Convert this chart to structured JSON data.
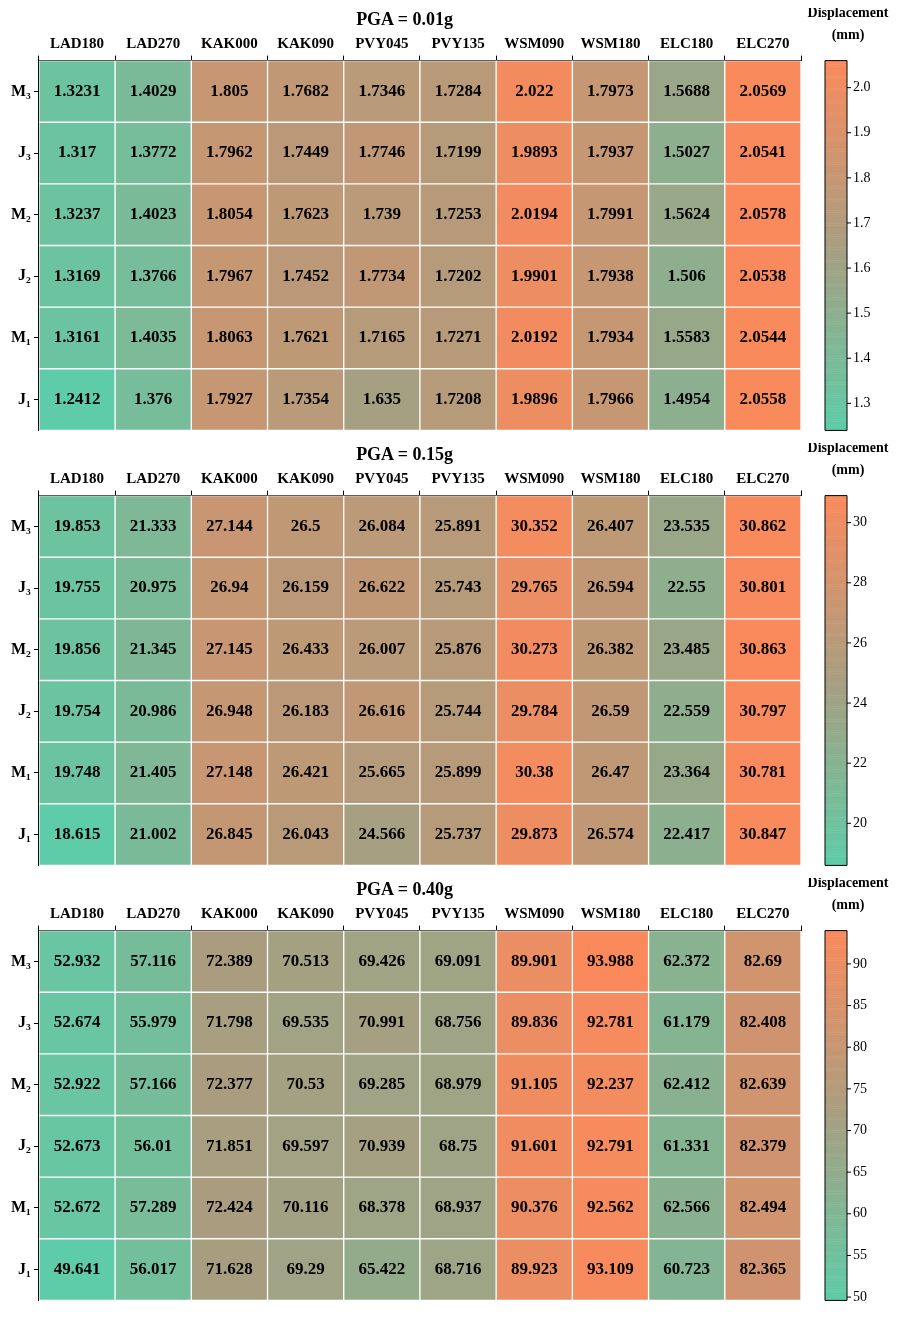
{
  "chart_data": [
    {
      "type": "heatmap",
      "title": "PGA = 0.01g",
      "clabel": "Displacement (mm)",
      "data_labels": true,
      "categories": [
        "LAD180",
        "LAD270",
        "KAK000",
        "KAK090",
        "PVY045",
        "PVY135",
        "WSM090",
        "WSM180",
        "ELC180",
        "ELC270"
      ],
      "y_categories": [
        "M₃",
        "J₃",
        "M₂",
        "J₂",
        "M₁",
        "J₁"
      ],
      "cells": [
        [
          1.3231,
          1.4029,
          1.805,
          1.7682,
          1.7346,
          1.7284,
          2.022,
          1.7973,
          1.5688,
          2.0569
        ],
        [
          1.317,
          1.3772,
          1.7962,
          1.7449,
          1.7746,
          1.7199,
          1.9893,
          1.7937,
          1.5027,
          2.0541
        ],
        [
          1.3237,
          1.4023,
          1.8054,
          1.7623,
          1.739,
          1.7253,
          2.0194,
          1.7991,
          1.5624,
          2.0578
        ],
        [
          1.3169,
          1.3766,
          1.7967,
          1.7452,
          1.7734,
          1.7202,
          1.9901,
          1.7938,
          1.506,
          2.0538
        ],
        [
          1.3161,
          1.4035,
          1.8063,
          1.7621,
          1.7165,
          1.7271,
          2.0192,
          1.7934,
          1.5583,
          2.0544
        ],
        [
          1.2412,
          1.376,
          1.7927,
          1.7354,
          1.635,
          1.7208,
          1.9896,
          1.7966,
          1.4954,
          2.0558
        ]
      ],
      "clim": [
        1.24,
        2.06
      ],
      "cticks": [
        1.3,
        1.4,
        1.5,
        1.6,
        1.7,
        1.8,
        1.9,
        {
          "value": 2,
          "label": "2.0"
        }
      ]
    },
    {
      "type": "heatmap",
      "title": "PGA = 0.15g",
      "clabel": "Displacement (mm)",
      "data_labels": true,
      "categories": [
        "LAD180",
        "LAD270",
        "KAK000",
        "KAK090",
        "PVY045",
        "PVY135",
        "WSM090",
        "WSM180",
        "ELC180",
        "ELC270"
      ],
      "y_categories": [
        "M₃",
        "J₃",
        "M₂",
        "J₂",
        "M₁",
        "J₁"
      ],
      "cells": [
        [
          19.853,
          21.333,
          27.144,
          26.5,
          26.084,
          25.891,
          30.352,
          26.407,
          23.535,
          30.862
        ],
        [
          19.755,
          20.975,
          26.94,
          26.159,
          26.622,
          25.743,
          29.765,
          26.594,
          22.55,
          30.801
        ],
        [
          19.856,
          21.345,
          27.145,
          26.433,
          26.007,
          25.876,
          30.273,
          26.382,
          23.485,
          30.863
        ],
        [
          19.754,
          20.986,
          26.948,
          26.183,
          26.616,
          25.744,
          29.784,
          26.59,
          22.559,
          30.797
        ],
        [
          19.748,
          21.405,
          27.148,
          26.421,
          25.665,
          25.899,
          30.38,
          26.47,
          23.364,
          30.781
        ],
        [
          18.615,
          21.002,
          26.845,
          26.043,
          24.566,
          25.737,
          29.873,
          26.574,
          22.417,
          30.847
        ]
      ],
      "clim": [
        18.6,
        30.9
      ],
      "cticks": [
        20,
        22,
        24,
        26,
        28,
        30
      ]
    },
    {
      "type": "heatmap",
      "title": "PGA = 0.40g",
      "clabel": "Displacement (mm)",
      "data_labels": true,
      "categories": [
        "LAD180",
        "LAD270",
        "KAK000",
        "KAK090",
        "PVY045",
        "PVY135",
        "WSM090",
        "WSM180",
        "ELC180",
        "ELC270"
      ],
      "y_categories": [
        "M₃",
        "J₃",
        "M₂",
        "J₂",
        "M₁",
        "J₁"
      ],
      "cells": [
        [
          52.932,
          57.116,
          72.389,
          70.513,
          69.426,
          69.091,
          89.901,
          93.988,
          62.372,
          82.69
        ],
        [
          52.674,
          55.979,
          71.798,
          69.535,
          70.991,
          68.756,
          89.836,
          92.781,
          61.179,
          82.408
        ],
        [
          52.922,
          57.166,
          72.377,
          70.53,
          69.285,
          68.979,
          91.105,
          92.237,
          62.412,
          82.639
        ],
        [
          52.673,
          56.01,
          71.851,
          69.597,
          70.939,
          68.75,
          91.601,
          92.791,
          61.331,
          82.379
        ],
        [
          52.672,
          57.289,
          72.424,
          70.116,
          68.378,
          68.937,
          90.376,
          92.562,
          62.566,
          82.494
        ],
        [
          49.641,
          56.017,
          71.628,
          69.29,
          65.422,
          68.716,
          89.923,
          93.109,
          60.723,
          82.365
        ]
      ],
      "clim": [
        49.6,
        94
      ],
      "cticks": [
        50,
        55,
        60,
        65,
        70,
        75,
        80,
        85,
        90
      ]
    }
  ]
}
